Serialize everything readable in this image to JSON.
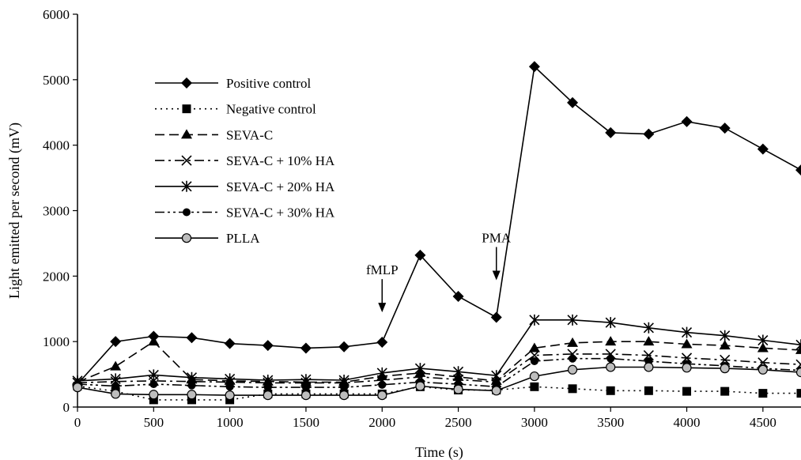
{
  "chart_data": {
    "type": "line",
    "xlabel": "Time (s)",
    "ylabel": "Light emitted per second (mV)",
    "xlim": [
      0,
      4750
    ],
    "ylim": [
      0,
      6000
    ],
    "xticks": [
      0,
      500,
      1000,
      1500,
      2000,
      2500,
      3000,
      3500,
      4000,
      4500
    ],
    "yticks": [
      0,
      1000,
      2000,
      3000,
      4000,
      5000,
      6000
    ],
    "grid": false,
    "legend_position": "top-left",
    "annotations": [
      {
        "text": "fMLP",
        "x": 2000,
        "y": 1230
      },
      {
        "text": "PMA",
        "x": 2750,
        "y": 1720
      }
    ],
    "series": [
      {
        "name": "Positive control",
        "line": "solid",
        "marker": "diamond",
        "x": [
          0,
          250,
          500,
          750,
          1000,
          1250,
          1500,
          1750,
          2000,
          2250,
          2500,
          2750,
          3000,
          3250,
          3500,
          3750,
          4000,
          4250,
          4500,
          4750
        ],
        "y": [
          350,
          1000,
          1080,
          1060,
          970,
          940,
          900,
          920,
          990,
          2320,
          1690,
          1370,
          5200,
          4650,
          4190,
          4170,
          4360,
          4260,
          3940,
          3620
        ]
      },
      {
        "name": "Negative control",
        "line": "dotted",
        "marker": "square",
        "x": [
          0,
          250,
          500,
          750,
          1000,
          1250,
          1500,
          1750,
          2000,
          2250,
          2500,
          2750,
          3000,
          3250,
          3500,
          3750,
          4000,
          4250,
          4500,
          4750
        ],
        "y": [
          320,
          240,
          110,
          110,
          110,
          200,
          200,
          200,
          200,
          310,
          260,
          260,
          310,
          280,
          250,
          250,
          240,
          240,
          210,
          210
        ]
      },
      {
        "name": "SEVA-C",
        "line": "dashed",
        "marker": "triangle",
        "x": [
          0,
          250,
          500,
          750,
          1000,
          1250,
          1500,
          1750,
          2000,
          2250,
          2500,
          2750,
          3000,
          3250,
          3500,
          3750,
          4000,
          4250,
          4500,
          4750
        ],
        "y": [
          380,
          620,
          1000,
          420,
          400,
          390,
          380,
          380,
          470,
          520,
          460,
          400,
          900,
          980,
          1000,
          1000,
          960,
          940,
          900,
          870
        ]
      },
      {
        "name": "SEVA-C + 10% HA",
        "line": "dash-dot",
        "marker": "x",
        "x": [
          0,
          250,
          500,
          750,
          1000,
          1250,
          1500,
          1750,
          2000,
          2250,
          2500,
          2750,
          3000,
          3250,
          3500,
          3750,
          4000,
          4250,
          4500,
          4750
        ],
        "y": [
          370,
          390,
          400,
          390,
          380,
          370,
          370,
          370,
          410,
          460,
          420,
          380,
          790,
          810,
          810,
          790,
          750,
          720,
          680,
          650
        ]
      },
      {
        "name": "SEVA-C + 20% HA",
        "line": "solid",
        "marker": "asterisk",
        "x": [
          0,
          250,
          500,
          750,
          1000,
          1250,
          1500,
          1750,
          2000,
          2250,
          2500,
          2750,
          3000,
          3250,
          3500,
          3750,
          4000,
          4250,
          4500,
          4750
        ],
        "y": [
          400,
          430,
          490,
          450,
          430,
          410,
          420,
          410,
          520,
          590,
          540,
          480,
          1330,
          1330,
          1290,
          1210,
          1140,
          1090,
          1020,
          950
        ]
      },
      {
        "name": "SEVA-C + 30% HA",
        "line": "dash-dot-dot",
        "marker": "circle",
        "x": [
          0,
          250,
          500,
          750,
          1000,
          1250,
          1500,
          1750,
          2000,
          2250,
          2500,
          2750,
          3000,
          3250,
          3500,
          3750,
          4000,
          4250,
          4500,
          4750
        ],
        "y": [
          350,
          320,
          350,
          330,
          310,
          300,
          300,
          300,
          340,
          380,
          350,
          310,
          700,
          740,
          740,
          700,
          660,
          630,
          590,
          560
        ]
      },
      {
        "name": "PLLA",
        "line": "solid",
        "marker": "circle-open",
        "x": [
          0,
          250,
          500,
          750,
          1000,
          1250,
          1500,
          1750,
          2000,
          2250,
          2500,
          2750,
          3000,
          3250,
          3500,
          3750,
          4000,
          4250,
          4500,
          4750
        ],
        "y": [
          300,
          200,
          190,
          190,
          180,
          180,
          180,
          180,
          180,
          320,
          270,
          250,
          470,
          570,
          610,
          610,
          600,
          590,
          570,
          530
        ]
      }
    ]
  }
}
